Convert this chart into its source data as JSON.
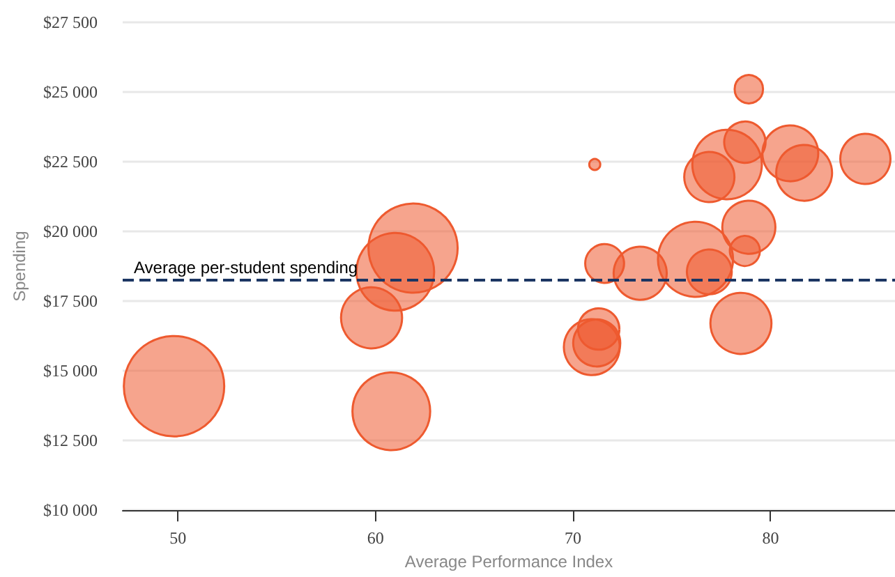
{
  "chart_data": {
    "type": "bubble",
    "xlabel": "Average Performance Index",
    "ylabel": "Spending",
    "x": [
      49.8,
      59.8,
      60.8,
      61.0,
      61.9,
      71.1,
      71.6,
      73.4,
      71.3,
      70.95,
      71.2,
      76.2,
      76.9,
      78.5,
      78.7,
      78.9,
      78.9,
      78.7,
      77.8,
      76.9,
      81.0,
      81.7,
      84.8
    ],
    "values": [
      14450,
      16900,
      13550,
      18550,
      19400,
      22400,
      18850,
      18500,
      16500,
      15850,
      16000,
      19000,
      18550,
      16700,
      19300,
      20150,
      25100,
      23200,
      22400,
      21950,
      22800,
      22100,
      22600
    ],
    "sizes": [
      1,
      0.37,
      0.6,
      0.6,
      0.79,
      0.012,
      0.15,
      0.28,
      0.17,
      0.31,
      0.22,
      0.56,
      0.2,
      0.37,
      0.09,
      0.28,
      0.08,
      0.17,
      0.48,
      0.25,
      0.31,
      0.31,
      0.25
    ],
    "color": "#ee5a2f",
    "marker": "circle",
    "xlim": [
      47.2,
      86.3
    ],
    "xticks": [
      50,
      60,
      70,
      80
    ],
    "ylim": [
      10000,
      27500
    ],
    "yticks": [
      {
        "value": 10000,
        "label": "$10 000"
      },
      {
        "value": 12500,
        "label": "$12 500"
      },
      {
        "value": 15000,
        "label": "$15 000"
      },
      {
        "value": 17500,
        "label": "$17 500"
      },
      {
        "value": 20000,
        "label": "$20 000"
      },
      {
        "value": 22500,
        "label": "$22 500"
      },
      {
        "value": 25000,
        "label": "$25 000"
      },
      {
        "value": 27500,
        "label": "$27 500"
      }
    ],
    "grid": "y",
    "ref_lines": [
      {
        "axis": "y",
        "value": 18250,
        "label": "Average per-student spending",
        "color": "#1c3663",
        "line_style": "dashed"
      }
    ]
  }
}
